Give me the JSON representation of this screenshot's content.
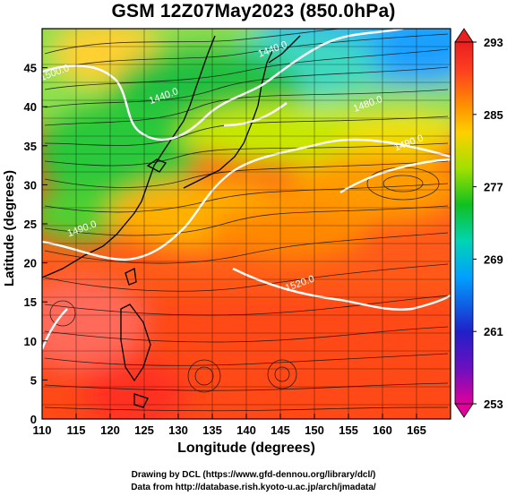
{
  "title": "GSM 12Z07May2023 (850.0hPa)",
  "axes": {
    "xlabel": "Longitude (degrees)",
    "ylabel": "Latitude  (degrees)",
    "x_ticks": [
      "110",
      "115",
      "120",
      "125",
      "130",
      "135",
      "140",
      "145",
      "150",
      "155",
      "160",
      "165"
    ],
    "y_ticks": [
      "0",
      "5",
      "10",
      "15",
      "20",
      "25",
      "30",
      "35",
      "40",
      "45"
    ],
    "xlim": [
      110,
      170
    ],
    "ylim": [
      0,
      50
    ]
  },
  "colorbar": {
    "labels": [
      "293",
      "285",
      "277",
      "269",
      "261",
      "253"
    ],
    "range": [
      253,
      293
    ],
    "colors": [
      "#e0009a",
      "#2020c8",
      "#00a0ff",
      "#00d4b4",
      "#10c020",
      "#a0e000",
      "#ffd000",
      "#ff9400",
      "#ff4020",
      "#e82020"
    ]
  },
  "contours": [
    {
      "label": "1500.0",
      "lon": 112,
      "lat": 44
    },
    {
      "label": "1440.0",
      "lon": 144,
      "lat": 47
    },
    {
      "label": "1440.0",
      "lon": 128,
      "lat": 41
    },
    {
      "label": "1480.0",
      "lon": 158,
      "lat": 40
    },
    {
      "label": "1490.0",
      "lon": 164,
      "lat": 35
    },
    {
      "label": "1490.0",
      "lon": 116,
      "lat": 24
    },
    {
      "label": "1520.0",
      "lon": 148,
      "lat": 17
    }
  ],
  "credits": {
    "line1": "Drawing by DCL (https://www.gfd-dennou.org/library/dcl/)",
    "line2": "Data from http://database.rish.kyoto-u.ac.jp/arch/jmadata/"
  }
}
